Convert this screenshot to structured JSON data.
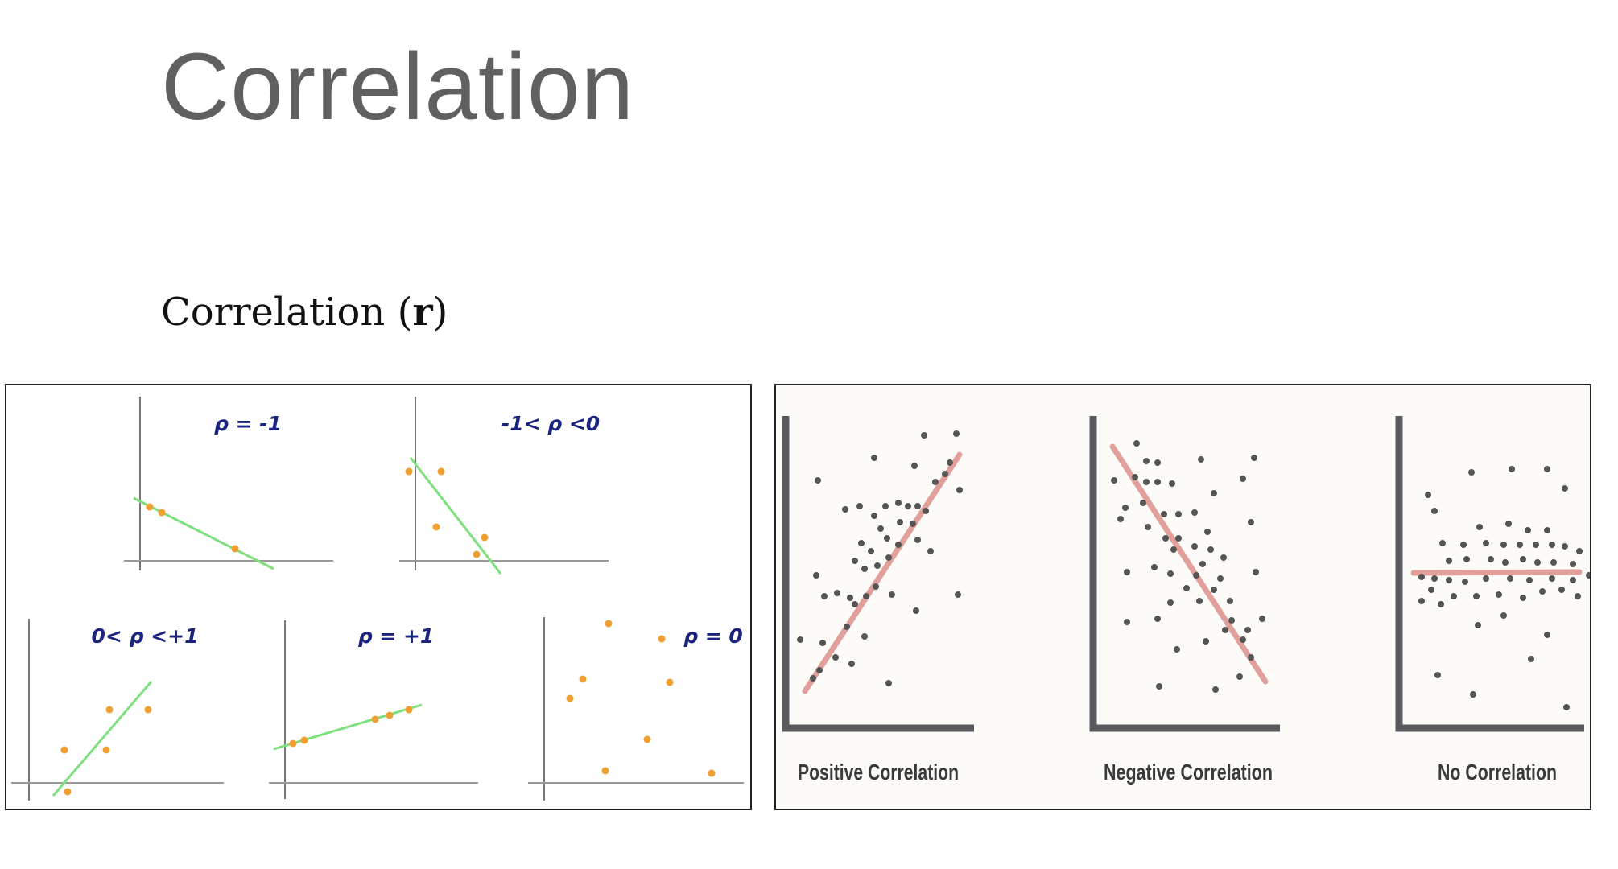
{
  "slide": {
    "title": "Correlation",
    "subtitle_text": "Correlation (",
    "subtitle_symbol": "r",
    "subtitle_close": ")"
  },
  "left_plots": [
    {
      "label": "ρ = -1"
    },
    {
      "label": "-1< ρ <0"
    },
    {
      "label": "0< ρ <+1"
    },
    {
      "label": "ρ = +1"
    },
    {
      "label": "ρ = 0"
    }
  ],
  "right_plots": [
    {
      "label": "Positive Correlation"
    },
    {
      "label": "Negative Correlation"
    },
    {
      "label": "No Correlation"
    }
  ],
  "colors": {
    "title": "#606060",
    "axis_gray": "#777777",
    "label_blue": "#1a237e",
    "fit_green": "#7de07d",
    "point_orange": "#f0a030",
    "trend_red": "#e2a09c",
    "dot_dark": "#555555",
    "axis_dark": "#5a5b5e"
  }
}
